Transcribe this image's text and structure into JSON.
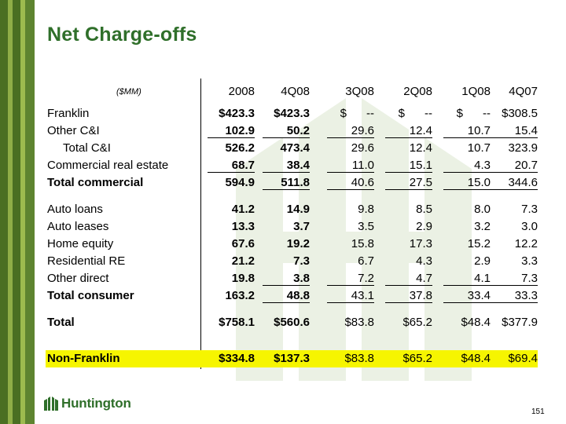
{
  "slide": {
    "title": "Net Charge-offs",
    "units_label": "($MM)",
    "page_number": "151",
    "brand": "Huntington",
    "colors": {
      "title": "#2f6f2a",
      "highlight": "#f6f500",
      "stripe_dark": "#466d1f",
      "stripe_light": "#9dbb4f"
    }
  },
  "table": {
    "columns": [
      "2008",
      "4Q08",
      "3Q08",
      "2Q08",
      "1Q08",
      "4Q07"
    ],
    "rows": [
      {
        "label": "Franklin",
        "values": [
          "$423.3",
          "$423.3",
          "$      --",
          "$      --",
          "$      --",
          "$308.5"
        ]
      },
      {
        "label": "Other C&I",
        "values": [
          "102.9",
          "50.2",
          "29.6",
          "12.4",
          "10.7",
          "15.4"
        ]
      },
      {
        "label": "Total C&I",
        "values": [
          "526.2",
          "473.4",
          "29.6",
          "12.4",
          "10.7",
          "323.9"
        ]
      },
      {
        "label": "Commercial real estate",
        "values": [
          "68.7",
          "38.4",
          "11.0",
          "15.1",
          "4.3",
          "20.7"
        ]
      },
      {
        "label": "Total commercial",
        "values": [
          "594.9",
          "511.8",
          "40.6",
          "27.5",
          "15.0",
          "344.6"
        ]
      },
      {
        "label": "Auto loans",
        "values": [
          "41.2",
          "14.9",
          "9.8",
          "8.5",
          "8.0",
          "7.3"
        ]
      },
      {
        "label": "Auto leases",
        "values": [
          "13.3",
          "3.7",
          "3.5",
          "2.9",
          "3.2",
          "3.0"
        ]
      },
      {
        "label": "Home equity",
        "values": [
          "67.6",
          "19.2",
          "15.8",
          "17.3",
          "15.2",
          "12.2"
        ]
      },
      {
        "label": "Residential RE",
        "values": [
          "21.2",
          "7.3",
          "6.7",
          "4.3",
          "2.9",
          "3.3"
        ]
      },
      {
        "label": "Other direct",
        "values": [
          "19.8",
          "3.8",
          "7.2",
          "4.7",
          "4.1",
          "7.3"
        ]
      },
      {
        "label": "Total consumer",
        "values": [
          "163.2",
          "48.8",
          "43.1",
          "37.8",
          "33.4",
          "33.3"
        ]
      },
      {
        "label": "Total",
        "values": [
          "$758.1",
          "$560.6",
          "$83.8",
          "$65.2",
          "$48.4",
          "$377.9"
        ]
      },
      {
        "label": "Non-Franklin",
        "values": [
          "$334.8",
          "$137.3",
          "$83.8",
          "$65.2",
          "$48.4",
          "$69.4"
        ]
      }
    ]
  }
}
